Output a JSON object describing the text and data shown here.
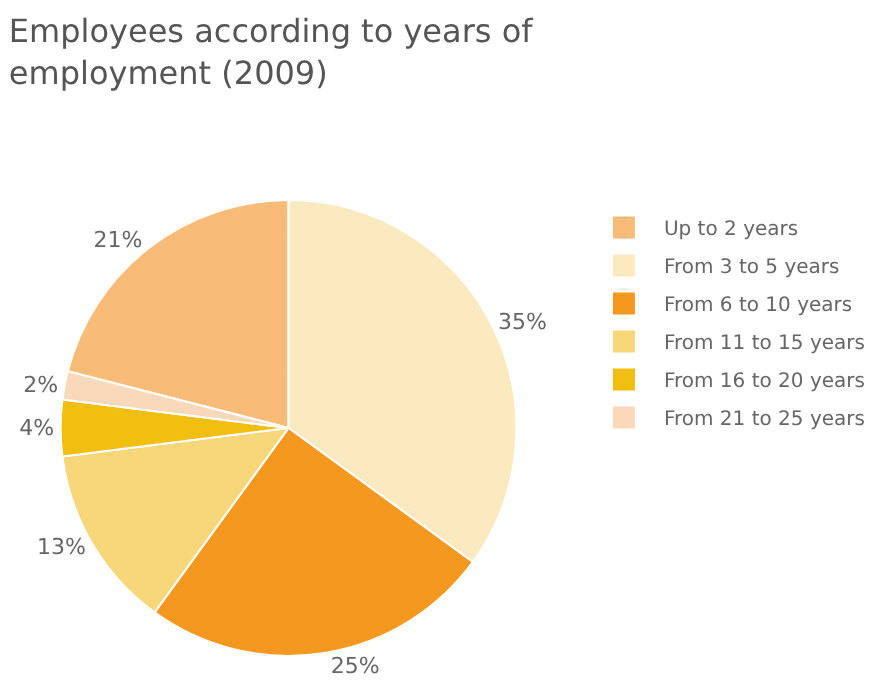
{
  "chart_data": {
    "type": "pie",
    "title": "Employees according to years of employment (2009)",
    "categories": [
      "Up to 2 years",
      "From 3 to 5 years",
      "From 6 to 10 years",
      "From 11 to 15 years",
      "From 16 to 20 years",
      "From 21 to 25 years"
    ],
    "values": [
      21,
      35,
      25,
      13,
      4,
      2
    ],
    "value_labels": [
      "21%",
      "35%",
      "25%",
      "13%",
      "4%",
      "2%"
    ],
    "colors": [
      "#f9bb78",
      "#fbe9c0",
      "#f5981f",
      "#f8d67a",
      "#f2be10",
      "#fad9bb"
    ],
    "legend": "right"
  }
}
